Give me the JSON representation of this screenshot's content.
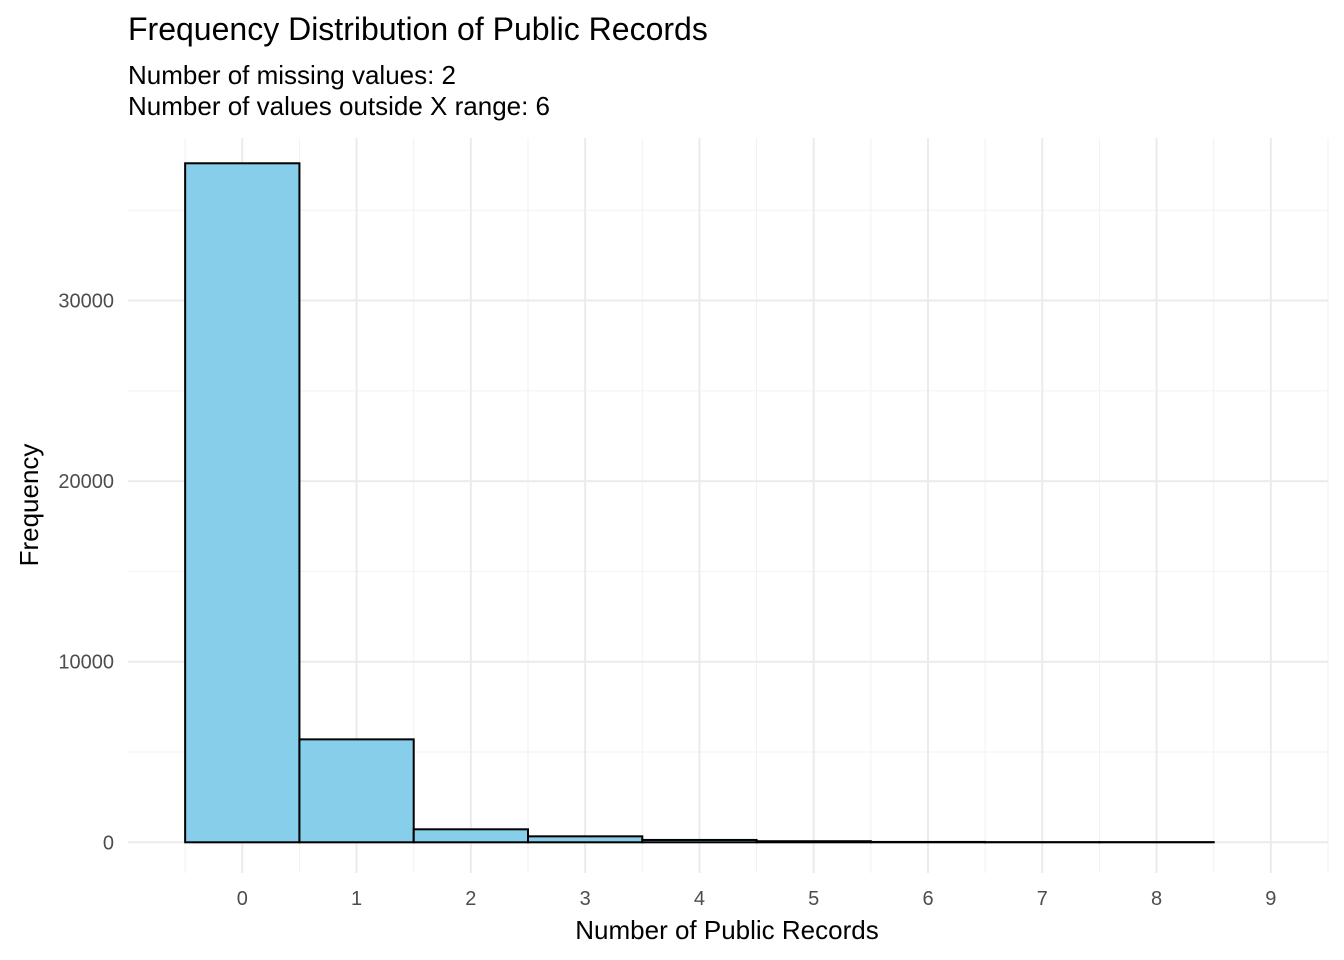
{
  "chart_data": {
    "type": "bar",
    "subtype": "histogram",
    "title": "Frequency Distribution of Public Records",
    "subtitle_lines": [
      "Number of missing values: 2",
      "Number of values outside X range: 6"
    ],
    "xlabel": "Number of Public Records",
    "ylabel": "Frequency",
    "categories": [
      "0",
      "1",
      "2",
      "3",
      "4",
      "5",
      "6",
      "7",
      "8"
    ],
    "x": [
      0,
      1,
      2,
      3,
      4,
      5,
      6,
      7,
      8
    ],
    "values": [
      37600,
      5700,
      720,
      330,
      130,
      60,
      20,
      10,
      10
    ],
    "bin_width": 1,
    "xlim": [
      -1,
      9.5
    ],
    "ylim": [
      -1700,
      39000
    ],
    "x_ticks": [
      0,
      1,
      2,
      3,
      4,
      5,
      6,
      7,
      8,
      9
    ],
    "y_ticks": [
      0,
      10000,
      20000,
      30000
    ],
    "grid": true,
    "legend": "none",
    "colors": {
      "bar_fill": "#87CEEB",
      "bar_stroke": "#000000",
      "grid_major": "#ebebeb",
      "grid_minor": "#f2f2f2",
      "background": "#ffffff",
      "tick_text": "#4d4d4d"
    }
  }
}
